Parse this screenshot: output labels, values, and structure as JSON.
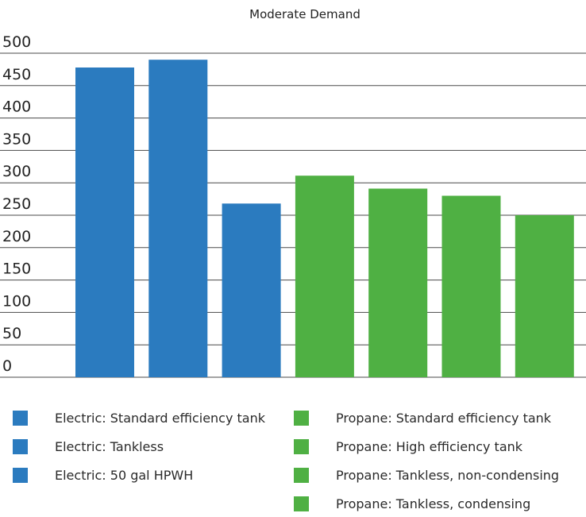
{
  "chart_data": {
    "type": "bar",
    "title": "Moderate Demand",
    "xlabel": "",
    "ylabel": "",
    "ylim": [
      0,
      500
    ],
    "yticks": [
      0,
      50,
      100,
      150,
      200,
      250,
      300,
      350,
      400,
      450,
      500
    ],
    "grid": true,
    "legend_position": "bottom",
    "categories": [
      "Electric: Standard efficiency tank",
      "Electric: Tankless",
      "Electric: 50 gal HPWH",
      "Propane: Standard efficiency tank",
      "Propane: High efficiency tank",
      "Propane: Tankless, non-condensing",
      "Propane: Tankless, condensing"
    ],
    "values": [
      478,
      490,
      268,
      311,
      291,
      280,
      250
    ],
    "bar_colors": [
      "#2b7bbf",
      "#2b7bbf",
      "#2b7bbf",
      "#4fb043",
      "#4fb043",
      "#4fb043",
      "#4fb043"
    ]
  }
}
